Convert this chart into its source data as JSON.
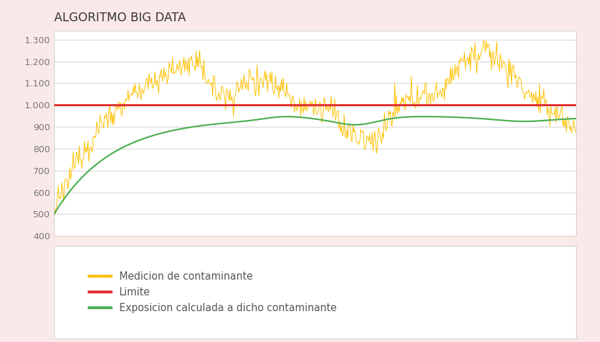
{
  "title": "ALGORITMO BIG DATA",
  "ylim": [
    400,
    1340
  ],
  "yticks": [
    400,
    500,
    600,
    700,
    800,
    900,
    1000,
    1100,
    1200,
    1300
  ],
  "ytick_labels": [
    "400",
    "500",
    "600",
    "700",
    "800",
    "900",
    "1.000",
    "1.100",
    "1.200",
    "1.300"
  ],
  "limit_value": 1000,
  "outer_bg_color": "#fae9e9",
  "chart_bg_color": "#ffffff",
  "legend_bg_color": "#ffffff",
  "yellow_color": "#FFC000",
  "red_color": "#e03030",
  "green_color": "#4CAF50",
  "legend_labels": [
    "Medicion de contaminante",
    "Limite",
    "Exposicion calculada a dicho contaminante"
  ],
  "n_points": 600
}
